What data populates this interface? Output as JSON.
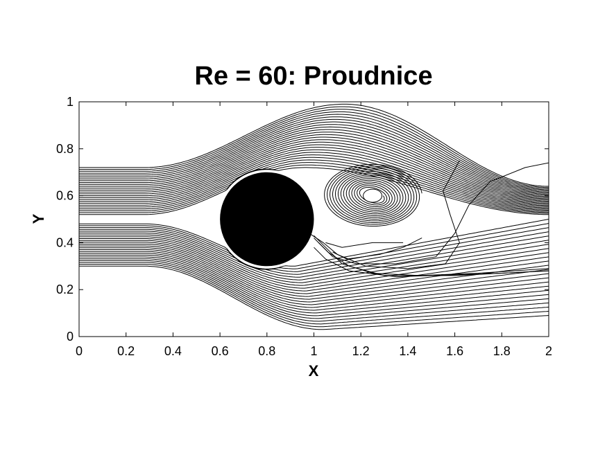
{
  "chart_data": {
    "type": "streamline",
    "title": "Re = 60: Proudnice",
    "xlabel": "X",
    "ylabel": "Y",
    "xlim": [
      0,
      2
    ],
    "ylim": [
      0,
      1
    ],
    "x_ticks": [
      "0",
      "0.2",
      "0.4",
      "0.6",
      "0.8",
      "1",
      "1.2",
      "1.4",
      "1.6",
      "1.8",
      "2"
    ],
    "y_ticks": [
      "0",
      "0.2",
      "0.4",
      "0.6",
      "0.8",
      "1"
    ],
    "x_tick_values": [
      0,
      0.2,
      0.4,
      0.6,
      0.8,
      1.0,
      1.2,
      1.4,
      1.6,
      1.8,
      2.0
    ],
    "y_tick_values": [
      0,
      0.2,
      0.4,
      0.6,
      0.8,
      1.0
    ],
    "grid": false,
    "obstacle": {
      "shape": "circle",
      "cx": 0.8,
      "cy": 0.5,
      "r": 0.2,
      "color": "#000000"
    },
    "vortex": {
      "center": [
        1.25,
        0.6
      ],
      "eye_radius": [
        0.04,
        0.028
      ]
    },
    "line_color": "#000000",
    "background": "#ffffff"
  }
}
